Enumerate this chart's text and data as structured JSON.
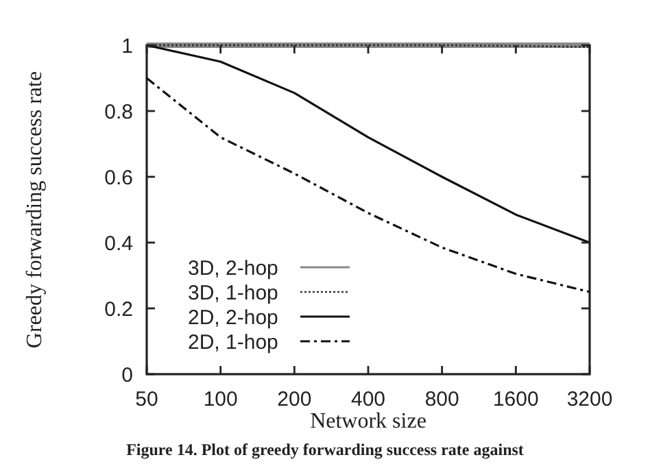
{
  "chart_data": {
    "type": "line",
    "xlabel": "Network size",
    "ylabel": "Greedy forwarding success rate",
    "categories": [
      "50",
      "100",
      "200",
      "400",
      "800",
      "1600",
      "3200"
    ],
    "ylim": [
      0,
      1
    ],
    "yticks": [
      0,
      0.2,
      0.4,
      0.6,
      0.8,
      1
    ],
    "grid": false,
    "legend": "bottom left",
    "marker": "none",
    "series": [
      {
        "name": "3D, 2-hop",
        "color": "#8a8a8a",
        "line_style": "solid",
        "values": [
          1,
          1,
          1,
          1,
          1,
          1,
          1
        ]
      },
      {
        "name": "3D, 1-hop",
        "color": "#333333",
        "line_style": "dotted",
        "values": [
          1,
          1,
          1,
          1,
          1,
          0.998,
          0.995
        ]
      },
      {
        "name": "2D, 2-hop",
        "color": "#111111",
        "line_style": "solid",
        "values": [
          1,
          0.95,
          0.855,
          0.72,
          0.6,
          0.485,
          0.4
        ]
      },
      {
        "name": "2D, 1-hop",
        "color": "#111111",
        "line_style": "dashdot",
        "values": [
          0.9,
          0.72,
          0.61,
          0.49,
          0.385,
          0.305,
          0.25
        ]
      }
    ],
    "annotations": [
      "Figure 14. Plot of greedy forwarding success rate against"
    ]
  }
}
